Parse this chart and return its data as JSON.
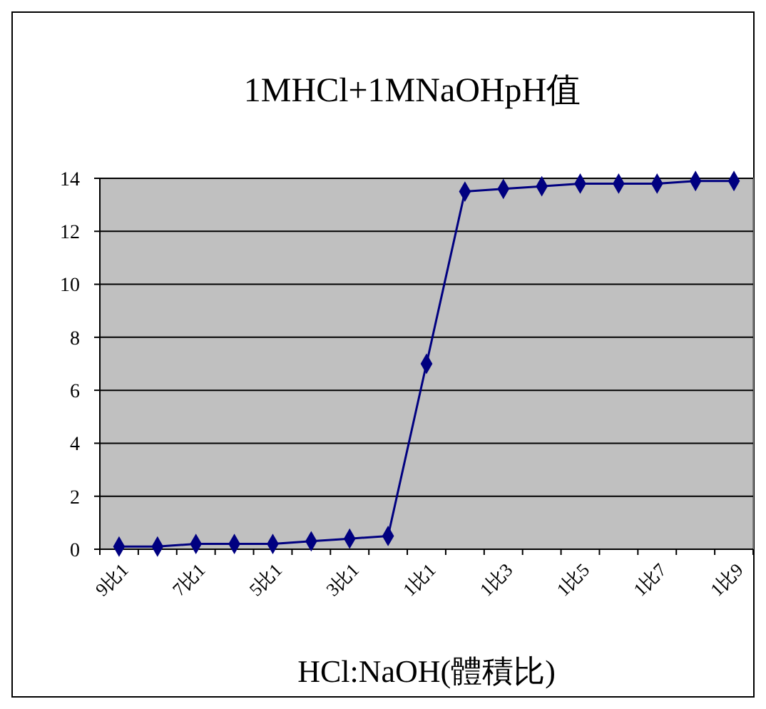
{
  "chart_data": {
    "type": "line",
    "title": "1MHCl+1MNaOHpH值",
    "xlabel": "HCl:NaOH(體積比)",
    "categories": [
      "9比1",
      null,
      "7比1",
      null,
      "5比1",
      null,
      "3比1",
      null,
      "1比1",
      null,
      "1比3",
      null,
      "1比5",
      null,
      "1比7",
      null,
      "1比9"
    ],
    "series": [
      {
        "color": "#000080",
        "values": [
          0.1,
          0.1,
          0.2,
          0.2,
          0.2,
          0.3,
          0.4,
          0.5,
          7.0,
          13.5,
          13.6,
          13.7,
          13.8,
          13.8,
          13.8,
          13.9,
          13.9
        ]
      }
    ],
    "ylim": [
      0,
      14
    ],
    "yticks": [
      0,
      2,
      4,
      6,
      8,
      10,
      12,
      14
    ],
    "grid": "y",
    "marker": "diamond",
    "line_style": "solid"
  }
}
